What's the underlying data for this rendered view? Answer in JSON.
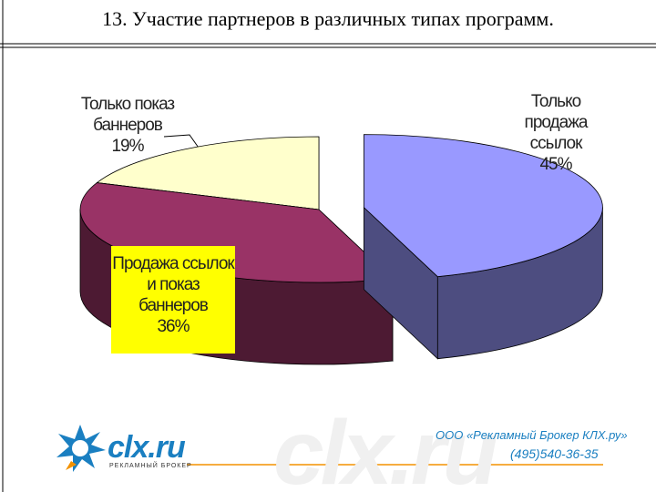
{
  "chart_data": {
    "type": "pie3d",
    "title": "13. Участие партнеров в различных типах программ.",
    "categories": [
      "Только продажа ссылок",
      "Продажа ссылок и показ баннеров",
      "Только показ баннеров"
    ],
    "values": [
      45,
      36,
      19
    ],
    "value_labels": [
      "45%",
      "36%",
      "19%"
    ],
    "colors": [
      "#9999ff",
      "#993366",
      "#ffffcc"
    ]
  },
  "footer": {
    "logo": "clx.ru",
    "logo_subtitle": "РЕКЛАМНЫЙ БРОКЕР",
    "watermark": "clx.ru",
    "company": "ООО «Рекламный Брокер КЛХ.ру»",
    "phone": "(495)540-36-35"
  }
}
